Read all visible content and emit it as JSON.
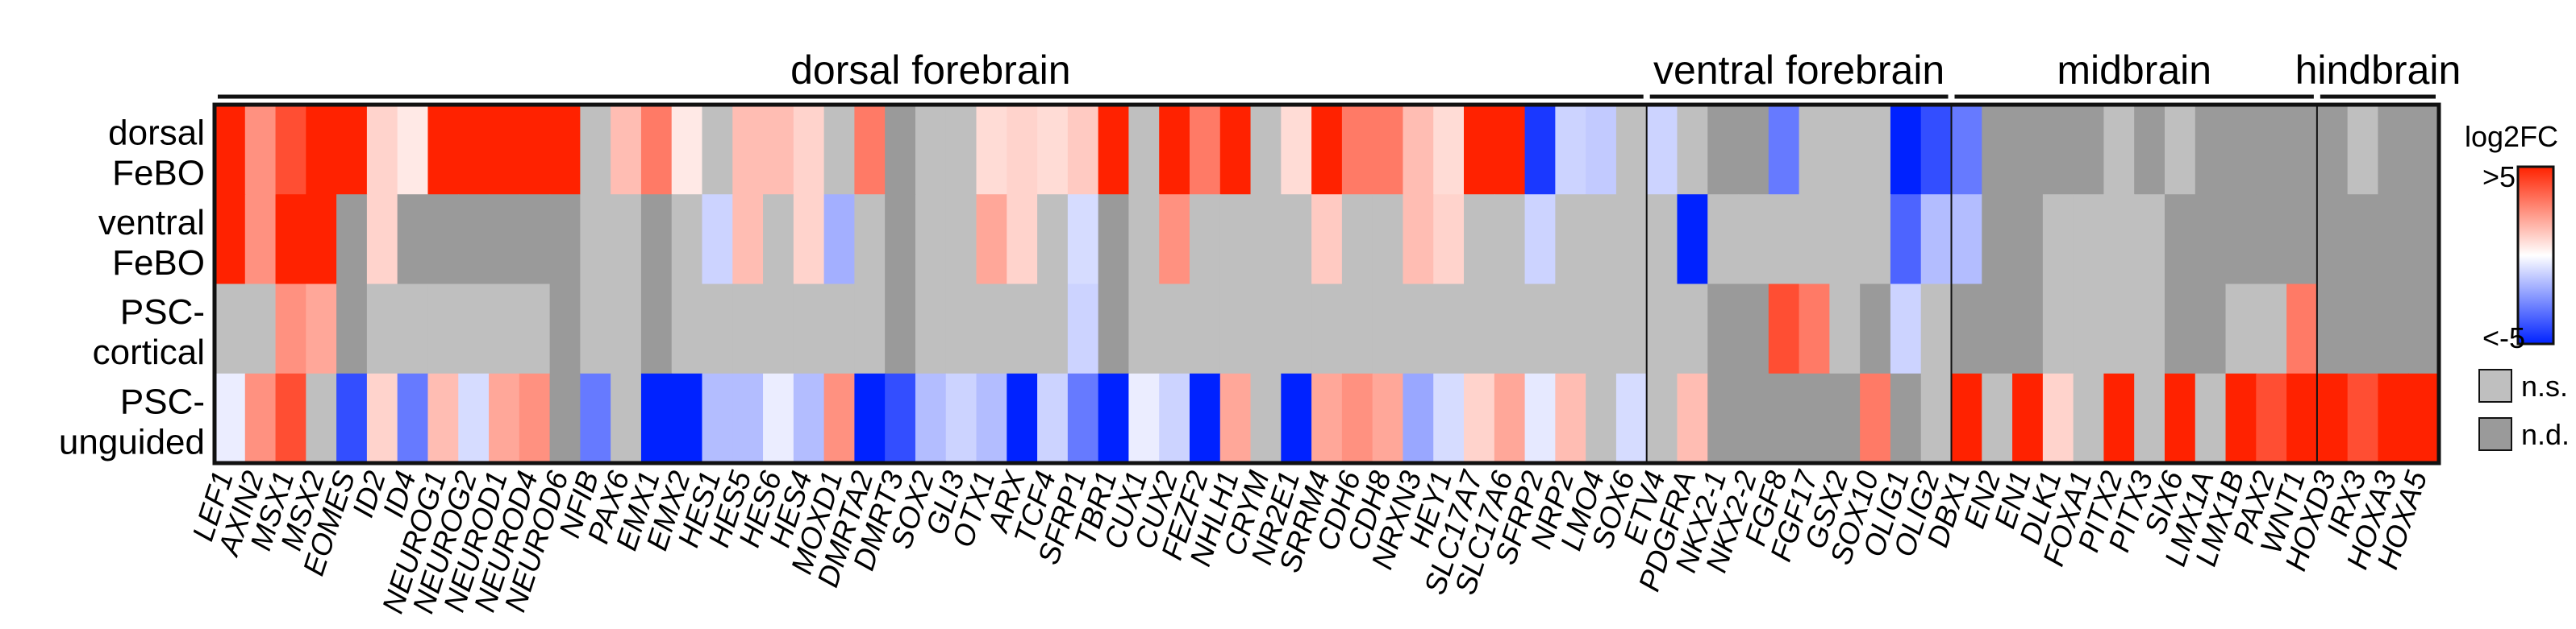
{
  "chart_data": {
    "type": "heatmap",
    "legend_title": "log2FC",
    "legend_max_label": ">5",
    "legend_min_label": "<-5",
    "value_range": [
      -5,
      5
    ],
    "colors": {
      "high": "#ff2200",
      "mid": "#ffffff",
      "low": "#0022ff",
      "ns": "#bfbfbf",
      "nd": "#9a9a9a"
    },
    "ns_label": "n.s.",
    "nd_label": "n.d.",
    "rows": [
      {
        "line1": "dorsal",
        "line2": "FeBO"
      },
      {
        "line1": "ventral",
        "line2": "FeBO"
      },
      {
        "line1": "PSC-",
        "line2": "cortical"
      },
      {
        "line1": "PSC-",
        "line2": "unguided"
      }
    ],
    "regions": [
      {
        "name": "dorsal forebrain",
        "start": 0,
        "end": 46
      },
      {
        "name": "ventral forebrain",
        "start": 47,
        "end": 56
      },
      {
        "name": "midbrain",
        "start": 57,
        "end": 68
      },
      {
        "name": "hindbrain",
        "start": 69,
        "end": 72
      }
    ],
    "genes": [
      "LEF1",
      "AXIN2",
      "MSX1",
      "MSX2",
      "EOMES",
      "ID2",
      "ID4",
      "NEUROG1",
      "NEUROG2",
      "NEUROD1",
      "NEUROD4",
      "NEUROD6",
      "NFIB",
      "PAX6",
      "EMX1",
      "EMX2",
      "HES1",
      "HES5",
      "HES6",
      "HES4",
      "MOXD1",
      "DMRTA2",
      "DMRT3",
      "SOX2",
      "GLI3",
      "OTX1",
      "ARX",
      "TCF4",
      "SFRP1",
      "TBR1",
      "CUX1",
      "CUX2",
      "FEZF2",
      "NHLH1",
      "CRYM",
      "NR2E1",
      "SRRM4",
      "CDH6",
      "CDH8",
      "NRXN3",
      "HEY1",
      "SLC17A7",
      "SLC17A6",
      "SFRP2",
      "NRP2",
      "LMO4",
      "SOX6",
      "ETV4",
      "PDGFRA",
      "NKX2-1",
      "NKX2-2",
      "FGF8",
      "FGF17",
      "GSX2",
      "SOX10",
      "OLIG1",
      "OLIG2",
      "DBX1",
      "EN2",
      "EN1",
      "DLK1",
      "FOXA1",
      "PITX2",
      "PITX3",
      "SIX6",
      "LMX1A",
      "LMX1B",
      "PAX2",
      "WNT1",
      "HOXD3",
      "IRX3",
      "HOXA3",
      "HOXA5"
    ],
    "values": [
      [
        5,
        2.5,
        4,
        5,
        5,
        1,
        0.5,
        5,
        5,
        5,
        5,
        5,
        "ns",
        1.5,
        3,
        0.5,
        "ns",
        1.5,
        1.5,
        1,
        "ns",
        3,
        "nd",
        "ns",
        "ns",
        0.8,
        1,
        0.8,
        1.2,
        5,
        "ns",
        5,
        3,
        5,
        "ns",
        0.8,
        5,
        3,
        3,
        1.5,
        0.8,
        5,
        5,
        -4.5,
        -1,
        -1.2,
        "ns",
        -1,
        "ns",
        "nd",
        "nd",
        -3,
        "ns",
        "ns",
        "ns",
        -5,
        -4,
        -3,
        "nd",
        "nd",
        "nd",
        "nd",
        "ns",
        "nd",
        "ns",
        "nd",
        "nd",
        "nd",
        "nd",
        "nd",
        "ns",
        "nd",
        "nd"
      ],
      [
        5,
        2.5,
        5,
        5,
        "nd",
        1,
        "nd",
        "nd",
        "nd",
        "nd",
        "nd",
        "nd",
        "ns",
        "ns",
        "nd",
        "ns",
        -1,
        1.5,
        "ns",
        1,
        -1.8,
        "ns",
        "nd",
        "ns",
        "ns",
        2,
        1,
        "ns",
        -0.8,
        "nd",
        "ns",
        2.5,
        "ns",
        "ns",
        "ns",
        "ns",
        1.2,
        "ns",
        "ns",
        1.5,
        1,
        "ns",
        "ns",
        -1,
        "ns",
        "ns",
        "ns",
        "ns",
        -5,
        "ns",
        "ns",
        "ns",
        "ns",
        "ns",
        "ns",
        -3.5,
        -1.5,
        -1.5,
        "nd",
        "nd",
        "ns",
        "ns",
        "ns",
        "ns",
        "nd",
        "nd",
        "nd",
        "nd",
        "nd",
        "nd",
        "nd",
        "nd",
        "nd"
      ],
      [
        "ns",
        "ns",
        2.5,
        2,
        "nd",
        "ns",
        "ns",
        "ns",
        "ns",
        "ns",
        "ns",
        "nd",
        "ns",
        "ns",
        "nd",
        "ns",
        "ns",
        "ns",
        "ns",
        "ns",
        "ns",
        "ns",
        "nd",
        "ns",
        "ns",
        "ns",
        "ns",
        "ns",
        -1,
        "nd",
        "ns",
        "ns",
        "ns",
        "ns",
        "ns",
        "ns",
        "ns",
        "ns",
        "ns",
        "ns",
        "ns",
        "ns",
        "ns",
        "ns",
        "ns",
        "ns",
        "ns",
        "ns",
        "ns",
        "nd",
        "nd",
        4,
        3,
        "ns",
        "nd",
        -1,
        "ns",
        "nd",
        "nd",
        "nd",
        "ns",
        "ns",
        "ns",
        "ns",
        "nd",
        "nd",
        "ns",
        "ns",
        3,
        "nd",
        "nd",
        "nd",
        "nd"
      ],
      [
        -0.4,
        2.5,
        4,
        "ns",
        -4,
        1,
        -3,
        1.5,
        -0.8,
        2,
        2.5,
        "nd",
        -3,
        "ns",
        -5,
        -5,
        -1.5,
        -1.5,
        -0.4,
        -1.5,
        2.5,
        -5,
        -4,
        -1.5,
        -1,
        -1.5,
        -5,
        -1,
        -3,
        -5,
        -0.4,
        -1,
        -5,
        2,
        "ns",
        -5,
        2,
        2.5,
        2,
        -2,
        -0.8,
        1,
        2,
        -0.5,
        1.5,
        "ns",
        -0.8,
        "ns",
        1.5,
        "nd",
        "nd",
        "nd",
        "nd",
        "nd",
        3,
        "nd",
        "ns",
        5,
        "ns",
        5,
        1,
        "ns",
        5,
        "ns",
        5,
        "ns",
        5,
        4,
        5,
        5,
        4,
        5,
        5
      ]
    ]
  }
}
